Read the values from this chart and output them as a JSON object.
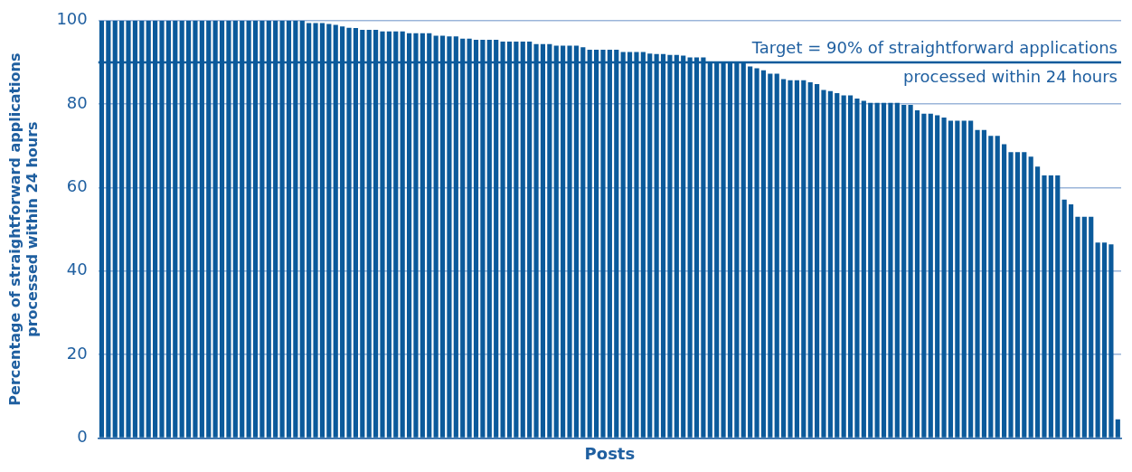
{
  "chart_data": {
    "type": "bar",
    "xlabel": "Posts",
    "ylabel": "Percentage of straightforward applications\nprocessed within 24 hours",
    "categories": [
      null,
      null,
      null,
      null,
      null,
      null,
      null,
      null,
      null,
      null,
      null,
      null,
      null,
      null,
      null,
      null,
      null,
      null,
      null,
      null,
      null,
      null,
      null,
      null,
      null,
      null,
      null,
      null,
      null,
      null,
      null,
      null,
      null,
      null,
      null,
      null,
      null,
      null,
      null,
      null,
      null,
      null,
      null,
      null,
      null,
      null,
      null,
      null,
      null,
      null,
      null,
      null,
      null,
      null,
      null,
      null,
      null,
      null,
      null,
      null,
      null,
      null,
      null,
      null,
      null,
      null,
      null,
      null,
      null,
      null,
      null,
      null,
      null,
      null,
      null,
      null,
      null,
      null,
      null,
      null,
      null,
      null,
      null,
      null,
      null,
      null,
      null,
      null,
      null,
      null,
      null,
      null,
      null,
      null,
      null,
      null,
      null,
      null,
      null,
      null,
      null,
      null,
      null,
      null,
      null,
      null,
      null,
      null,
      null,
      null,
      null,
      null,
      null,
      null,
      null,
      null,
      null,
      null,
      null,
      null,
      null,
      null,
      null,
      null,
      null,
      null,
      null,
      null,
      null,
      null,
      null,
      null,
      null,
      null,
      null,
      null,
      null,
      null,
      null,
      null,
      null,
      null,
      null,
      null,
      null,
      null,
      null,
      null,
      null,
      null,
      null,
      null,
      null
    ],
    "values": [
      100,
      100,
      100,
      100,
      100,
      100,
      100,
      100,
      100,
      100,
      100,
      100,
      100,
      100,
      100,
      100,
      100,
      100,
      100,
      100,
      100,
      100,
      100,
      100,
      100,
      100,
      100,
      100,
      100,
      100,
      100,
      99.4,
      99.4,
      99.4,
      99.2,
      99,
      98.6,
      98.3,
      98.2,
      97.8,
      97.8,
      97.8,
      97.4,
      97.4,
      97.4,
      97.4,
      97,
      97,
      97,
      97,
      96.4,
      96.4,
      96.2,
      96.2,
      95.7,
      95.7,
      95.4,
      95.4,
      95.4,
      95.4,
      95,
      95,
      95,
      95,
      95,
      94.4,
      94.4,
      94.4,
      94,
      94,
      94,
      94,
      93.6,
      93,
      93,
      93,
      93,
      93,
      92.5,
      92.5,
      92.5,
      92.5,
      92.1,
      92,
      92,
      91.8,
      91.8,
      91.6,
      91.2,
      91.2,
      91.2,
      90,
      90,
      90,
      90,
      90,
      90,
      89,
      88.6,
      88.1,
      87.3,
      87.3,
      86,
      85.7,
      85.7,
      85.7,
      85.2,
      84.8,
      83.4,
      83.1,
      82.6,
      82.1,
      82.1,
      81.3,
      80.8,
      80.3,
      80.3,
      80.3,
      80.3,
      80.3,
      79.8,
      79.8,
      78.5,
      77.7,
      77.7,
      77.3,
      76.8,
      76,
      76,
      76,
      76,
      73.8,
      73.8,
      72.4,
      72.4,
      70.4,
      68.5,
      68.5,
      68.5,
      67.4,
      65,
      62.9,
      62.9,
      62.9,
      57.1,
      56,
      53,
      53,
      53,
      46.8,
      46.8,
      46.4,
      4.5
    ],
    "color": "#0b5a9b",
    "ylim": [
      0,
      100
    ],
    "yticks": [
      0,
      20,
      40,
      60,
      80,
      100
    ],
    "grid": "y",
    "legend": false,
    "tick_labels": "y",
    "ref_lines": [
      {
        "axis": "y",
        "value": 90,
        "label": "Target = 90% of straightforward applications\nprocessed within 24 hours",
        "color": "#0b5a9b"
      }
    ]
  }
}
